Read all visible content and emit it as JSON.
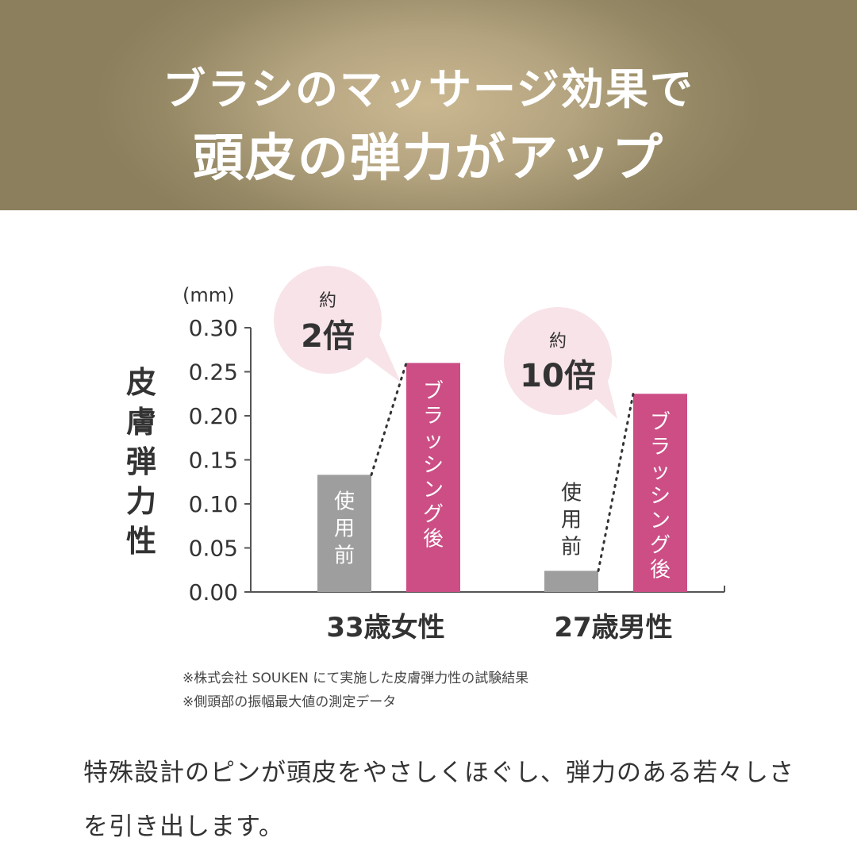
{
  "header": {
    "line1": "ブラシのマッサージ効果で",
    "line2": "頭皮の弾力がアップ"
  },
  "chart_data": {
    "type": "bar",
    "unit_label": "(mm)",
    "ylabel": "皮膚弾力性",
    "ylim": [
      0,
      0.3
    ],
    "yticks": [
      "0.30",
      "0.25",
      "0.20",
      "0.15",
      "0.10",
      "0.05",
      "0.00"
    ],
    "categories": [
      "33歳女性",
      "27歳男性"
    ],
    "series": [
      {
        "name": "使用前",
        "values": [
          0.133,
          0.024
        ]
      },
      {
        "name": "ブラッシング後",
        "values": [
          0.26,
          0.225
        ]
      }
    ],
    "annotations": [
      {
        "prefix": "約",
        "text": "2倍"
      },
      {
        "prefix": "約",
        "text": "10倍"
      }
    ],
    "colors": {
      "before": "#9e9e9e",
      "after": "#cc4e85",
      "bubble": "#f7e3e8",
      "axis": "#555555"
    }
  },
  "footnotes": [
    "※株式会社 SOUKEN にて実施した皮膚弾力性の試験結果",
    "※側頭部の振幅最大値の測定データ"
  ],
  "body_text": "特殊設計のピンが頭皮をやさしくほぐし、弾力のある若々しさを引き出します。"
}
